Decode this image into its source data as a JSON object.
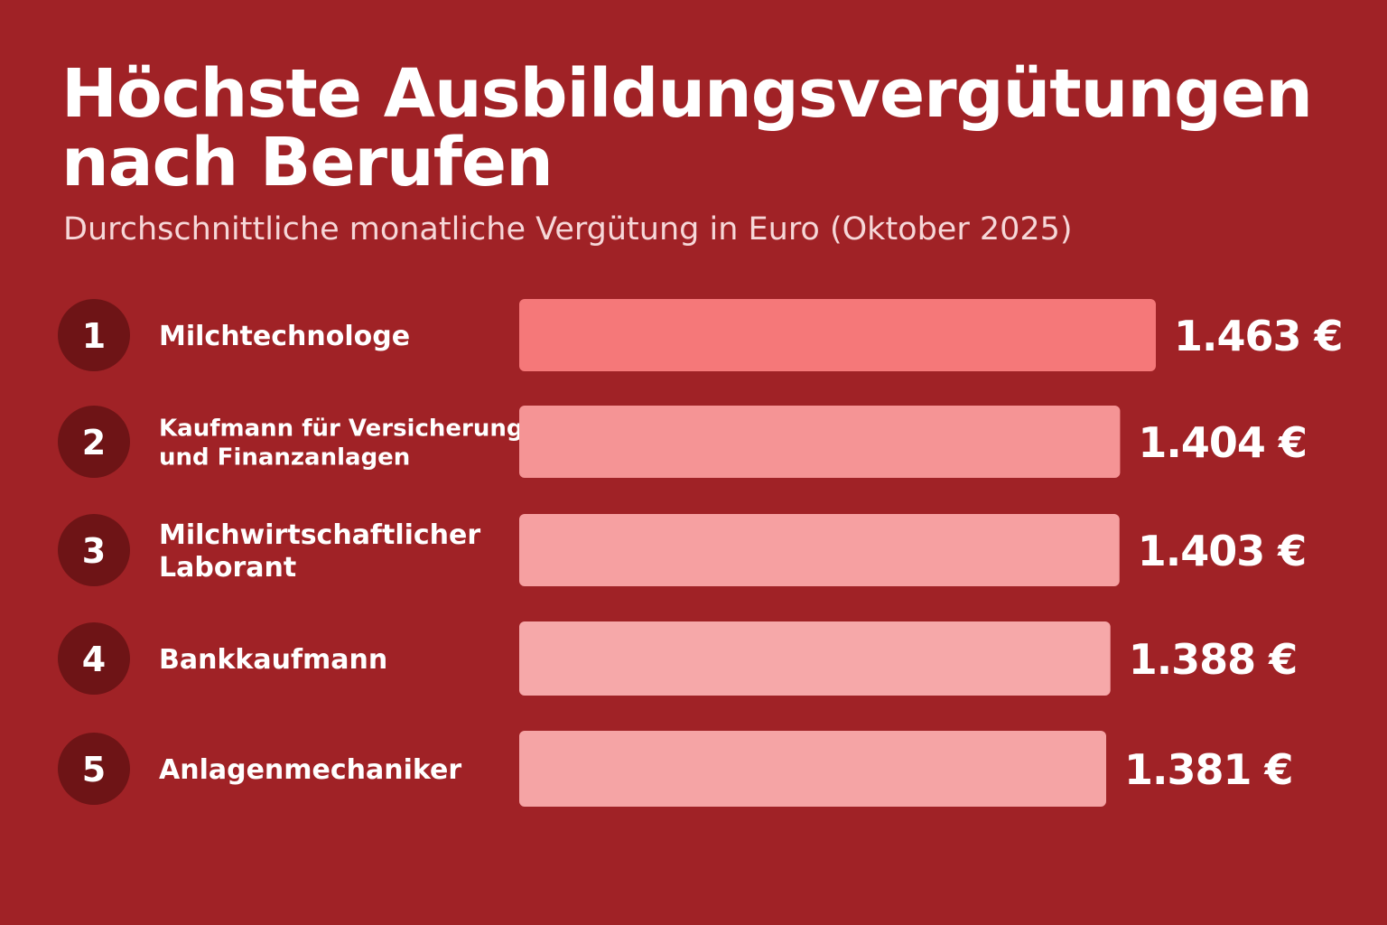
{
  "chart_data": {
    "type": "bar",
    "orientation": "horizontal",
    "title": "Höchste Ausbildungsvergütungen nach Berufen",
    "subtitle": "Durchschnittliche monatliche Vergütung in Euro (Oktober 2025)",
    "ranks": [
      "1",
      "2",
      "3",
      "4",
      "5"
    ],
    "categories": [
      [
        "Milchtechnologe"
      ],
      [
        "Kaufmann für Versicherungen",
        "und Finanzanlagen"
      ],
      [
        "Milchwirtschaftlicher",
        "Laborant"
      ],
      [
        "Bankkaufmann"
      ],
      [
        "Anlagenmechaniker"
      ]
    ],
    "values": [
      1463,
      1404,
      1403,
      1388,
      1381
    ],
    "value_labels": [
      "1.463 €",
      "1.404 €",
      "1.403 €",
      "1.388 €",
      "1.381 €"
    ],
    "unit": "€",
    "grid": false,
    "legend": "none"
  },
  "colors": {
    "background": "#a02226",
    "rank_circle": "#6e1416",
    "bar_colors": [
      "#f57879",
      "#f59495",
      "#f6a0a1",
      "#f6a8a9",
      "#f5a4a5"
    ],
    "text": "#ffffff",
    "subtitle_text": "#f6d7d8"
  }
}
